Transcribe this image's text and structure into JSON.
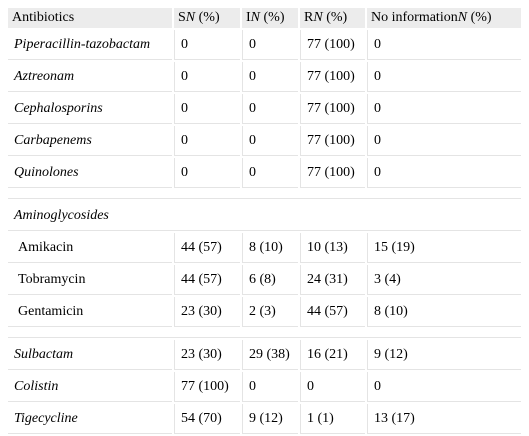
{
  "table": {
    "header": [
      "Antibiotics",
      [
        "S",
        "N",
        " (%)"
      ],
      [
        "I",
        "N",
        " (%)"
      ],
      [
        "R",
        "N",
        " (%)"
      ],
      [
        "No information",
        "N",
        " (%)"
      ]
    ],
    "groups": [
      {
        "rows": [
          [
            "Piperacillin-tazobactam",
            "0",
            "0",
            "77 (100)",
            "0"
          ],
          [
            "Aztreonam",
            "0",
            "0",
            "77 (100)",
            "0"
          ],
          [
            "Cephalosporins",
            "0",
            "0",
            "77 (100)",
            "0"
          ],
          [
            "Carbapenems",
            "0",
            "0",
            "77 (100)",
            "0"
          ],
          [
            "Quinolones",
            "0",
            "0",
            "77 (100)",
            "0"
          ]
        ]
      },
      {
        "title": "Aminoglycosides",
        "rows": [
          [
            "Amikacin",
            "44 (57)",
            "8 (10)",
            "10 (13)",
            "15 (19)"
          ],
          [
            "Tobramycin",
            "44 (57)",
            "6 (8)",
            "24 (31)",
            "3 (4)"
          ],
          [
            "Gentamicin",
            "23 (30)",
            "2 (3)",
            "44 (57)",
            "8 (10)"
          ]
        ]
      },
      {
        "rows": [
          [
            "Sulbactam",
            "23 (30)",
            "29 (38)",
            "16 (21)",
            "9 (12)"
          ],
          [
            "Colistin",
            "77 (100)",
            "0",
            "0",
            "0"
          ],
          [
            "Tigecycline",
            "54 (70)",
            "9 (12)",
            "1 (1)",
            "13 (17)"
          ]
        ]
      }
    ]
  }
}
